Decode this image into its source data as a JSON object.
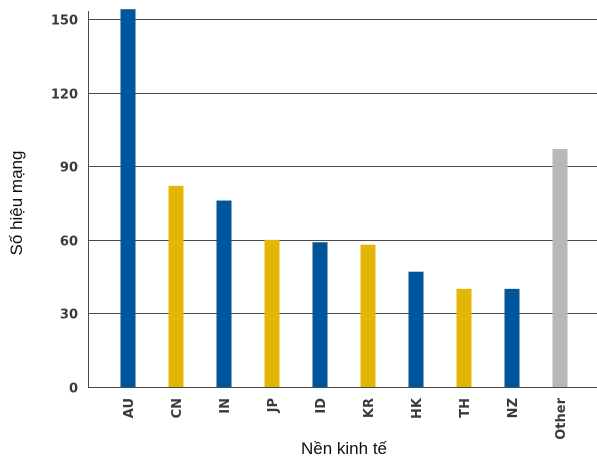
{
  "chart_data": {
    "type": "bar",
    "title": "",
    "xlabel": "Nền kinh tế",
    "ylabel": "Số hiệu mạng",
    "categories": [
      "AU",
      "CN",
      "IN",
      "JP",
      "ID",
      "KR",
      "HK",
      "TH",
      "NZ",
      "Other"
    ],
    "values": [
      154,
      82,
      76,
      60,
      59,
      58,
      47,
      40,
      40,
      97
    ],
    "bar_colors": [
      "#00569b",
      "#e3b505",
      "#00569b",
      "#e3b505",
      "#00569b",
      "#e3b505",
      "#00569b",
      "#e3b505",
      "#00569b",
      "#b8b8bc"
    ],
    "ylim": [
      0,
      150
    ],
    "yticks": [
      0,
      30,
      60,
      90,
      120,
      150
    ],
    "grid": true,
    "legend": "none"
  }
}
